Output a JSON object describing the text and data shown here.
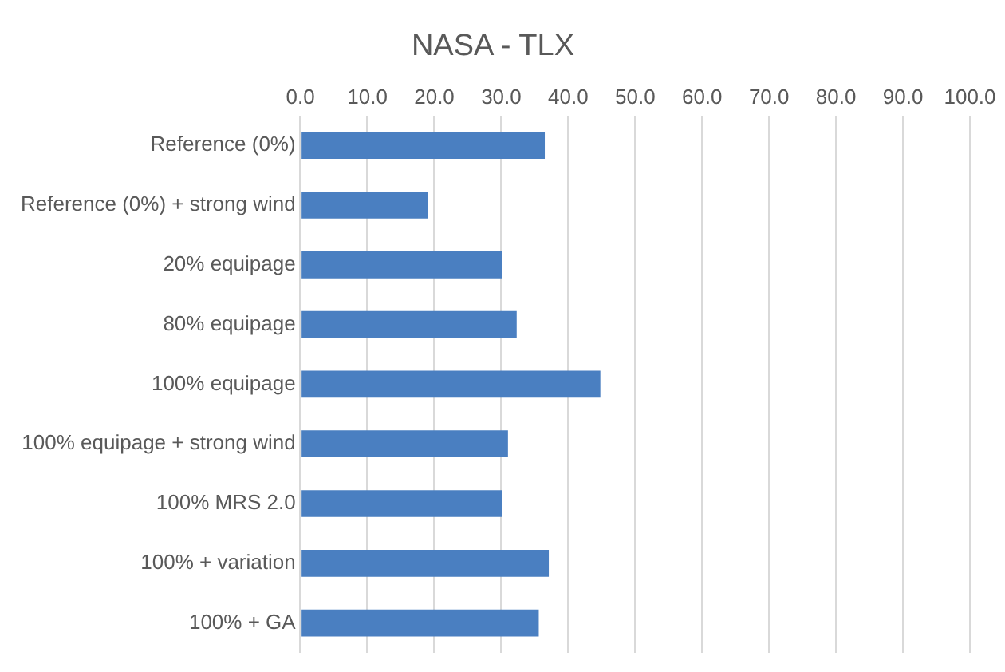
{
  "chart_data": {
    "type": "bar",
    "orientation": "horizontal",
    "title": "NASA - TLX",
    "categories": [
      "Reference (0%)",
      "Reference (0%) + strong wind",
      "20% equipage",
      "80% equipage",
      "100% equipage",
      "100% equipage + strong wind",
      "100% MRS 2.0",
      "100% + variation",
      "100% + GA"
    ],
    "values": [
      36.5,
      19.1,
      30.1,
      32.3,
      44.8,
      31.0,
      30.1,
      37.1,
      35.6
    ],
    "color": "#4a7fc1",
    "xlim": [
      0,
      100
    ],
    "xticks": [
      {
        "value": 0,
        "label": "0.0"
      },
      {
        "value": 10,
        "label": "10.0"
      },
      {
        "value": 20,
        "label": "20.0"
      },
      {
        "value": 30,
        "label": "30.0"
      },
      {
        "value": 40,
        "label": "40.0"
      },
      {
        "value": 50,
        "label": "50.0"
      },
      {
        "value": 60,
        "label": "60.0"
      },
      {
        "value": 70,
        "label": "70.0"
      },
      {
        "value": 80,
        "label": "80.0"
      },
      {
        "value": 90,
        "label": "90.0"
      },
      {
        "value": 100,
        "label": "100.0"
      }
    ],
    "grid": "x",
    "legend": false
  }
}
